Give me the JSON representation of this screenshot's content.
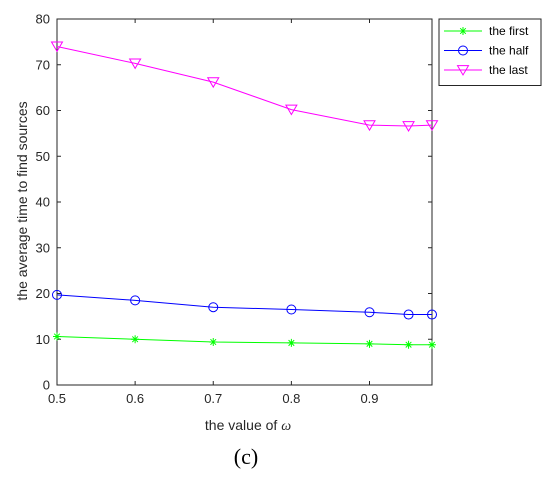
{
  "chart_data": {
    "type": "line",
    "xlabel_prefix": "the value of ",
    "xlabel_symbol": "ω",
    "ylabel": "the average time to find sources",
    "panel_label": "(c)",
    "xlim": [
      0.5,
      0.98
    ],
    "ylim": [
      0,
      80
    ],
    "xticks": [
      "0.5",
      "0.6",
      "0.7",
      "0.8",
      "0.9"
    ],
    "xtick_values": [
      0.5,
      0.6,
      0.7,
      0.8,
      0.9
    ],
    "yticks": [
      "0",
      "10",
      "20",
      "30",
      "40",
      "50",
      "60",
      "70",
      "80"
    ],
    "ytick_values": [
      0,
      10,
      20,
      30,
      40,
      50,
      60,
      70,
      80
    ],
    "grid": false,
    "legend_position": "top-right outside",
    "x": [
      0.5,
      0.6,
      0.7,
      0.8,
      0.9,
      0.95,
      0.98
    ],
    "series": [
      {
        "name": "the first",
        "color": "#00ff00",
        "marker": "asterisk",
        "values": [
          10.6,
          10.0,
          9.4,
          9.2,
          9.0,
          8.8,
          8.8
        ]
      },
      {
        "name": "the half",
        "color": "#0000ff",
        "marker": "circle",
        "values": [
          19.7,
          18.5,
          17.0,
          16.5,
          15.9,
          15.4,
          15.4
        ]
      },
      {
        "name": "the last",
        "color": "#ff00ff",
        "marker": "triangle-down",
        "values": [
          74.0,
          70.3,
          66.2,
          60.2,
          56.8,
          56.6,
          56.8
        ]
      }
    ]
  }
}
